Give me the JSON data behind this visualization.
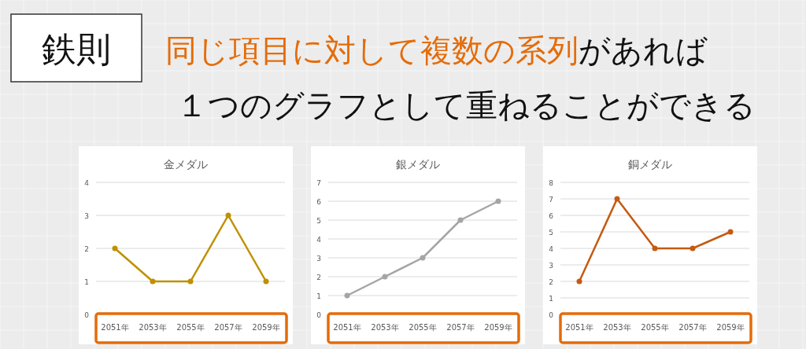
{
  "chart_data": [
    {
      "type": "other",
      "annotations": [
        "鉄則",
        "同じ項目に対して複数の系列",
        "があれば",
        "１つのグラフとして重ねることができる"
      ]
    },
    {
      "type": "line",
      "title": "金メダル",
      "categories": [
        "2051年",
        "2053年",
        "2055年",
        "2057年",
        "2059年"
      ],
      "ylim": [
        0,
        4
      ],
      "yticks": [
        0,
        1,
        2,
        3,
        4
      ],
      "grid": "y",
      "marker": "circle",
      "series": [
        {
          "color": "#bf9000",
          "values": [
            2,
            1,
            1,
            3,
            1
          ]
        }
      ]
    },
    {
      "type": "line",
      "title": "銀メダル",
      "categories": [
        "2051年",
        "2053年",
        "2055年",
        "2057年",
        "2059年"
      ],
      "ylim": [
        0,
        7
      ],
      "yticks": [
        0,
        1,
        2,
        3,
        4,
        5,
        6,
        7
      ],
      "grid": "y",
      "marker": "circle",
      "series": [
        {
          "color": "#a5a5a5",
          "values": [
            1,
            2,
            3,
            5,
            6
          ]
        }
      ]
    },
    {
      "type": "line",
      "title": "銅メダル",
      "categories": [
        "2051年",
        "2053年",
        "2055年",
        "2057年",
        "2059年"
      ],
      "ylim": [
        0,
        8
      ],
      "yticks": [
        0,
        1,
        2,
        3,
        4,
        5,
        6,
        7,
        8
      ],
      "grid": "y",
      "marker": "circle",
      "series": [
        {
          "color": "#c55a11",
          "values": [
            2,
            7,
            4,
            4,
            5
          ]
        }
      ]
    }
  ]
}
